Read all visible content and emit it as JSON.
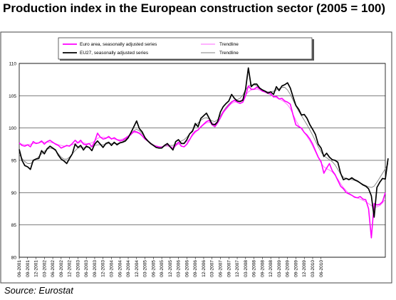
{
  "title": "Production index in the European construction sector (2005 = 100)",
  "source": "Source: Eurostat",
  "chart_data": {
    "type": "line",
    "ylim": [
      80,
      110
    ],
    "yticks": [
      80,
      85,
      90,
      95,
      100,
      105,
      110
    ],
    "x_tick_labels": [
      "06-2001",
      "09-2001",
      "12-2001",
      "03-2002",
      "06-2002",
      "09-2002",
      "12-2002",
      "03-2003",
      "06-2003",
      "09-2003",
      "12-2003",
      "03-2004",
      "06-2004",
      "09-2004",
      "12-2004",
      "03-2005",
      "06-2005",
      "09-2005",
      "12-2005",
      "03-2006",
      "06-2006",
      "09-2006",
      "12-2006",
      "03-2007",
      "06-2007",
      "09-2007",
      "12-2007",
      "03-2008",
      "06-2008",
      "09-2008",
      "12-2008",
      "03-2009",
      "06-2009",
      "09-2009",
      "12-2009",
      "03-2010",
      "06-2010"
    ],
    "grid": true,
    "legend_position": "top",
    "series": [
      {
        "name": "Euro area, seasonally adjusted series",
        "color": "#ff00ff",
        "width": 1.6,
        "values": [
          97.7,
          97.3,
          97.2,
          97.4,
          97.1,
          97.9,
          97.6,
          97.7,
          98.0,
          97.5,
          97.9,
          98.1,
          97.8,
          97.5,
          97.3,
          96.9,
          97.1,
          97.3,
          97.2,
          97.6,
          98.1,
          97.7,
          98.1,
          97.5,
          97.4,
          97.6,
          97.1,
          97.9,
          99.2,
          98.6,
          98.3,
          98.4,
          98.7,
          98.3,
          98.5,
          98.2,
          98.0,
          98.1,
          98.4,
          98.7,
          99.0,
          99.5,
          99.4,
          99.2,
          98.8,
          98.3,
          98.0,
          97.6,
          97.3,
          97.2,
          97.1,
          97.0,
          97.3,
          97.5,
          97.1,
          96.8,
          97.3,
          97.8,
          97.2,
          97.1,
          97.5,
          98.2,
          99.0,
          99.5,
          99.7,
          100.2,
          100.6,
          101.0,
          101.2,
          100.5,
          100.2,
          100.8,
          101.6,
          102.5,
          103.0,
          103.5,
          104.0,
          104.3,
          104.0,
          103.8,
          104.0,
          105.0,
          106.5,
          106.0,
          106.0,
          106.3,
          106.1,
          105.7,
          105.6,
          105.5,
          105.3,
          104.8,
          104.9,
          104.5,
          104.6,
          104.2,
          104.0,
          103.7,
          102.0,
          100.5,
          100.2,
          100.0,
          99.3,
          98.9,
          98.3,
          97.5,
          96.5,
          95.5,
          94.8,
          93.0,
          93.8,
          94.5,
          93.4,
          92.8,
          91.9,
          91.0,
          90.6,
          90.0,
          89.8,
          89.6,
          89.3,
          89.2,
          89.4,
          89.0,
          88.9,
          87.5,
          83.0,
          88.3,
          88.1,
          88.2,
          88.6,
          90.0
        ]
      },
      {
        "name": "Trendline",
        "color": "#ff66ff",
        "width": 0.9,
        "values": [
          97.6,
          97.5,
          97.4,
          97.4,
          97.5,
          97.6,
          97.7,
          97.7,
          97.8,
          97.8,
          97.8,
          97.8,
          97.7,
          97.6,
          97.4,
          97.3,
          97.2,
          97.2,
          97.3,
          97.4,
          97.6,
          97.7,
          97.8,
          97.7,
          97.6,
          97.6,
          97.7,
          98.0,
          98.4,
          98.6,
          98.6,
          98.5,
          98.5,
          98.4,
          98.3,
          98.2,
          98.2,
          98.3,
          98.5,
          98.8,
          99.1,
          99.3,
          99.3,
          99.1,
          98.8,
          98.4,
          98.0,
          97.7,
          97.4,
          97.2,
          97.1,
          97.1,
          97.2,
          97.2,
          97.1,
          97.1,
          97.3,
          97.5,
          97.6,
          97.7,
          97.9,
          98.3,
          98.8,
          99.3,
          99.7,
          100.1,
          100.5,
          100.8,
          100.9,
          100.8,
          100.7,
          100.9,
          101.5,
          102.3,
          102.9,
          103.4,
          103.8,
          104.0,
          104.1,
          104.2,
          104.5,
          105.1,
          105.6,
          105.9,
          106.0,
          106.0,
          105.9,
          105.7,
          105.5,
          105.3,
          105.1,
          104.9,
          104.7,
          104.5,
          104.3,
          104.0,
          103.6,
          103.0,
          102.1,
          101.2,
          100.4,
          99.8,
          99.3,
          98.7,
          98.0,
          97.2,
          96.3,
          95.4,
          94.6,
          94.0,
          93.7,
          93.5,
          93.2,
          92.7,
          92.1,
          91.4,
          90.8,
          90.3,
          89.9,
          89.6,
          89.4,
          89.2,
          89.0,
          88.8,
          88.6,
          88.3,
          88.0,
          87.8,
          87.8,
          88.0,
          88.4,
          89.0
        ]
      },
      {
        "name": "EU27, seasonally adjusted series",
        "color": "#000000",
        "width": 1.7,
        "values": [
          96.7,
          95.0,
          94.2,
          94.0,
          93.6,
          95.0,
          95.2,
          95.3,
          96.5,
          96.0,
          96.8,
          97.2,
          96.9,
          96.6,
          95.8,
          95.2,
          94.9,
          94.5,
          95.3,
          96.0,
          97.5,
          97.0,
          97.3,
          96.6,
          97.2,
          97.0,
          96.5,
          97.5,
          98.0,
          97.5,
          97.0,
          97.6,
          97.8,
          97.3,
          97.8,
          97.4,
          97.7,
          97.8,
          98.0,
          98.5,
          99.3,
          100.2,
          101.1,
          99.9,
          99.4,
          98.5,
          98.0,
          97.6,
          97.3,
          97.0,
          96.9,
          96.9,
          97.3,
          97.6,
          97.1,
          96.6,
          97.9,
          98.2,
          97.6,
          97.6,
          98.2,
          99.1,
          99.5,
          100.7,
          100.2,
          101.5,
          101.9,
          102.3,
          101.5,
          100.6,
          100.5,
          101.0,
          102.5,
          103.3,
          103.8,
          104.2,
          105.2,
          104.6,
          104.2,
          104.1,
          104.3,
          106.0,
          109.3,
          106.4,
          106.8,
          106.8,
          106.2,
          105.9,
          105.7,
          105.4,
          105.6,
          105.2,
          106.4,
          105.8,
          106.5,
          106.7,
          107.0,
          106.2,
          104.8,
          103.5,
          102.9,
          102.0,
          102.1,
          101.5,
          100.5,
          99.8,
          99.0,
          97.5,
          96.9,
          95.6,
          96.1,
          95.5,
          95.1,
          95.0,
          94.7,
          93.0,
          92.0,
          92.2,
          92.0,
          92.3,
          92.0,
          91.8,
          91.5,
          91.2,
          91.0,
          90.6,
          89.5,
          86.2,
          90.8,
          91.6,
          92.2,
          92.1,
          95.3
        ]
      },
      {
        "name": "Trendline",
        "color": "#808080",
        "width": 0.9,
        "values": [
          95.9,
          95.3,
          94.8,
          94.5,
          94.5,
          94.8,
          95.2,
          95.6,
          96.0,
          96.4,
          96.7,
          96.9,
          96.8,
          96.5,
          96.0,
          95.5,
          95.2,
          95.2,
          95.5,
          96.0,
          96.5,
          96.9,
          97.0,
          97.0,
          97.0,
          97.0,
          97.1,
          97.3,
          97.4,
          97.4,
          97.4,
          97.5,
          97.6,
          97.6,
          97.6,
          97.6,
          97.7,
          97.9,
          98.2,
          98.6,
          99.1,
          99.6,
          99.8,
          99.6,
          99.1,
          98.6,
          98.1,
          97.7,
          97.4,
          97.2,
          97.1,
          97.1,
          97.2,
          97.3,
          97.3,
          97.3,
          97.5,
          97.8,
          98.0,
          98.2,
          98.6,
          99.1,
          99.7,
          100.3,
          100.8,
          101.2,
          101.5,
          101.6,
          101.4,
          101.1,
          101.0,
          101.3,
          101.9,
          102.6,
          103.2,
          103.7,
          104.1,
          104.3,
          104.4,
          104.6,
          105.1,
          105.9,
          106.5,
          106.7,
          106.7,
          106.5,
          106.2,
          105.9,
          105.7,
          105.6,
          105.6,
          105.7,
          105.9,
          106.1,
          106.3,
          106.3,
          105.9,
          105.2,
          104.3,
          103.4,
          102.6,
          101.9,
          101.2,
          100.5,
          99.7,
          98.9,
          98.0,
          97.1,
          96.3,
          95.7,
          95.4,
          95.1,
          94.8,
          94.3,
          93.6,
          92.9,
          92.4,
          92.2,
          92.1,
          92.0,
          91.9,
          91.7,
          91.5,
          91.3,
          91.1,
          90.9,
          90.8,
          91.0,
          91.6,
          92.3,
          93.0,
          93.7,
          94.5
        ]
      }
    ]
  }
}
